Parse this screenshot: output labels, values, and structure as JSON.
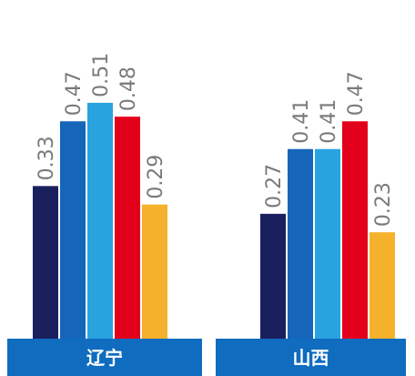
{
  "chart_data": {
    "type": "bar",
    "categories": [
      "辽宁",
      "山西"
    ],
    "series": [
      {
        "values": [
          0.33,
          0.27
        ],
        "color": "#1a1f5e"
      },
      {
        "values": [
          0.47,
          0.41
        ],
        "color": "#1565b8"
      },
      {
        "values": [
          0.51,
          0.41
        ],
        "color": "#29a3e0"
      },
      {
        "values": [
          0.48,
          0.47
        ],
        "color": "#e3001b"
      },
      {
        "values": [
          0.29,
          0.23
        ],
        "color": "#f5b12b"
      }
    ],
    "value_labels": [
      [
        "0.33",
        "0.47",
        "0.51",
        "0.48",
        "0.29"
      ],
      [
        "0.27",
        "0.41",
        "0.41",
        "0.47",
        "0.23"
      ]
    ],
    "ylim": [
      0,
      0.6
    ],
    "grid": false,
    "axis_band_color": "#0f6cbf"
  }
}
